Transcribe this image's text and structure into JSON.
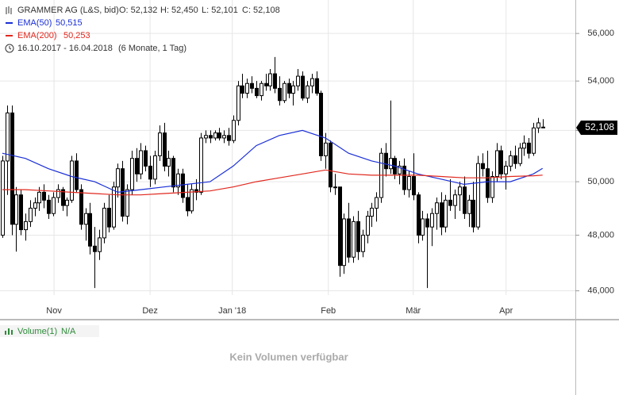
{
  "chart_data": {
    "type": "candlestick",
    "header": {
      "instrument": "GRAMMER AG (L&S, bid)",
      "open": "O: 52,132",
      "high": "H: 52,450",
      "low": "L: 52,101",
      "close": "C: 52,108",
      "range": "16.10.2017 - 16.04.2018",
      "period": "(6 Monate, 1 Tag)"
    },
    "log_scale": true,
    "grid": true,
    "xlim": [
      -0.5,
      124.1
    ],
    "ylim": [
      45080,
      57450
    ],
    "yticks": [
      {
        "value": 46000,
        "label": "46,000"
      },
      {
        "value": 48000,
        "label": "48,000"
      },
      {
        "value": 50000,
        "label": "50,000"
      },
      {
        "value": 52000,
        "label": "52,000"
      },
      {
        "value": 54000,
        "label": "54,000"
      },
      {
        "value": 56000,
        "label": "56,000"
      }
    ],
    "xticks": [
      {
        "value": 11.2,
        "label": "Nov"
      },
      {
        "value": 32,
        "label": "Dez"
      },
      {
        "value": 49.8,
        "label": "Jan '18"
      },
      {
        "value": 70.6,
        "label": "Feb"
      },
      {
        "value": 89,
        "label": "Mär"
      },
      {
        "value": 109.1,
        "label": "Apr"
      }
    ],
    "last_price": {
      "value": 52108,
      "label": "52,108"
    },
    "up_color": "#ffffff",
    "down_color": "#000000",
    "candles": [
      [
        48000,
        51000,
        47900,
        50800
      ],
      [
        50800,
        53000,
        49500,
        52700
      ],
      [
        52700,
        53000,
        48000,
        48400
      ],
      [
        48400,
        49800,
        47400,
        49500
      ],
      [
        49500,
        49700,
        48000,
        48200
      ],
      [
        48200,
        48800,
        47800,
        48500
      ],
      [
        48500,
        49300,
        48300,
        49000
      ],
      [
        49000,
        49400,
        48700,
        49200
      ],
      [
        49200,
        49800,
        48900,
        49600
      ],
      [
        49600,
        49900,
        49000,
        49300
      ],
      [
        49300,
        49500,
        48600,
        48800
      ],
      [
        48800,
        49600,
        48700,
        49400
      ],
      [
        49400,
        49900,
        49200,
        49700
      ],
      [
        49700,
        49800,
        48900,
        49100
      ],
      [
        49100,
        49400,
        48700,
        49300
      ],
      [
        49300,
        51000,
        49200,
        50800
      ],
      [
        50800,
        51100,
        49600,
        49700
      ],
      [
        49700,
        49900,
        48200,
        48400
      ],
      [
        48400,
        49000,
        47800,
        48800
      ],
      [
        48800,
        49200,
        47300,
        47600
      ],
      [
        47600,
        48300,
        46100,
        47400
      ],
      [
        47400,
        48200,
        47100,
        47900
      ],
      [
        47900,
        49200,
        47700,
        49000
      ],
      [
        49000,
        49500,
        48100,
        48300
      ],
      [
        48300,
        50000,
        48200,
        49800
      ],
      [
        49800,
        50700,
        49400,
        50500
      ],
      [
        50500,
        50800,
        48500,
        48700
      ],
      [
        48700,
        49900,
        48400,
        49700
      ],
      [
        49700,
        51200,
        49500,
        50900
      ],
      [
        50900,
        51300,
        50000,
        50300
      ],
      [
        50300,
        51500,
        50100,
        51200
      ],
      [
        51200,
        51400,
        50400,
        50600
      ],
      [
        50600,
        51000,
        49800,
        50100
      ],
      [
        50100,
        51200,
        49900,
        51000
      ],
      [
        51000,
        52200,
        50800,
        51900
      ],
      [
        51900,
        52300,
        50400,
        50600
      ],
      [
        50600,
        51200,
        50200,
        50900
      ],
      [
        50900,
        51000,
        49600,
        49800
      ],
      [
        49800,
        50500,
        49500,
        50300
      ],
      [
        50300,
        50500,
        49200,
        49400
      ],
      [
        49400,
        49900,
        48700,
        48900
      ],
      [
        48900,
        49900,
        48800,
        49700
      ],
      [
        49700,
        50100,
        49300,
        49600
      ],
      [
        49600,
        51900,
        49500,
        51700
      ],
      [
        51700,
        52000,
        51500,
        51800
      ],
      [
        51800,
        52000,
        51500,
        51700
      ],
      [
        51700,
        52000,
        51600,
        51900
      ],
      [
        51900,
        52100,
        51600,
        51700
      ],
      [
        51700,
        52000,
        51500,
        51800
      ],
      [
        51800,
        52100,
        51400,
        51600
      ],
      [
        51600,
        52600,
        51500,
        52400
      ],
      [
        52400,
        54000,
        52200,
        53800
      ],
      [
        53800,
        54300,
        53300,
        53500
      ],
      [
        53500,
        54100,
        53300,
        53900
      ],
      [
        53900,
        54200,
        53500,
        53700
      ],
      [
        53700,
        54000,
        53300,
        53400
      ],
      [
        53400,
        54000,
        53200,
        53900
      ],
      [
        53900,
        54300,
        53600,
        53800
      ],
      [
        53800,
        54500,
        53600,
        54300
      ],
      [
        54300,
        55000,
        53500,
        53700
      ],
      [
        53700,
        54200,
        53000,
        53200
      ],
      [
        53200,
        54000,
        53100,
        53900
      ],
      [
        53900,
        54100,
        53300,
        53500
      ],
      [
        53500,
        54000,
        53000,
        53800
      ],
      [
        53800,
        54500,
        53600,
        54200
      ],
      [
        54200,
        54400,
        53200,
        53300
      ],
      [
        53300,
        54000,
        53100,
        53800
      ],
      [
        53800,
        54300,
        53500,
        54100
      ],
      [
        54100,
        54400,
        53400,
        53500
      ],
      [
        53500,
        53600,
        50800,
        51000
      ],
      [
        51000,
        51900,
        50500,
        51500
      ],
      [
        51500,
        51600,
        49600,
        49800
      ],
      [
        49800,
        50300,
        49500,
        49800
      ],
      [
        49800,
        49800,
        46500,
        46900
      ],
      [
        46900,
        48800,
        46600,
        48600
      ],
      [
        48600,
        49200,
        47000,
        47200
      ],
      [
        47200,
        48700,
        47000,
        48500
      ],
      [
        48500,
        48900,
        47100,
        47400
      ],
      [
        47400,
        48200,
        47200,
        48000
      ],
      [
        48000,
        48900,
        47700,
        48700
      ],
      [
        48700,
        49200,
        48300,
        49000
      ],
      [
        49000,
        49600,
        48500,
        49400
      ],
      [
        49400,
        51300,
        49200,
        51100
      ],
      [
        51100,
        51500,
        50200,
        50500
      ],
      [
        50500,
        53200,
        50300,
        50900
      ],
      [
        50900,
        51000,
        50100,
        50300
      ],
      [
        50300,
        50800,
        49900,
        50600
      ],
      [
        50600,
        50900,
        49500,
        49700
      ],
      [
        49700,
        50400,
        49400,
        50200
      ],
      [
        50200,
        51100,
        49300,
        49500
      ],
      [
        49500,
        49600,
        47700,
        48000
      ],
      [
        48000,
        48900,
        47800,
        48600
      ],
      [
        48600,
        48800,
        46100,
        48300
      ],
      [
        48300,
        49000,
        47600,
        48800
      ],
      [
        48800,
        49400,
        48200,
        49200
      ],
      [
        49200,
        49600,
        48000,
        48300
      ],
      [
        48300,
        49500,
        48100,
        49300
      ],
      [
        49300,
        50100,
        48900,
        49100
      ],
      [
        49100,
        49700,
        48600,
        49500
      ],
      [
        49500,
        50000,
        48900,
        49800
      ],
      [
        49800,
        50200,
        48600,
        48800
      ],
      [
        48800,
        49500,
        48300,
        49300
      ],
      [
        49300,
        50000,
        48100,
        48300
      ],
      [
        48300,
        51000,
        48200,
        50700
      ],
      [
        50700,
        51100,
        50200,
        50500
      ],
      [
        50500,
        51200,
        49200,
        49400
      ],
      [
        49400,
        50400,
        49200,
        50200
      ],
      [
        50200,
        51500,
        50000,
        51200
      ],
      [
        51200,
        51400,
        50100,
        50300
      ],
      [
        50300,
        50800,
        49700,
        50600
      ],
      [
        50600,
        51200,
        50400,
        51000
      ],
      [
        51000,
        51400,
        50500,
        50700
      ],
      [
        50700,
        51500,
        50600,
        51300
      ],
      [
        51300,
        51800,
        51000,
        51500
      ],
      [
        51500,
        51700,
        50900,
        51100
      ],
      [
        51100,
        52300,
        51000,
        52100
      ],
      [
        52100,
        52500,
        51900,
        52300
      ],
      [
        52132,
        52450,
        52101,
        52108
      ]
    ],
    "series": [
      {
        "name": "EMA(50)",
        "value_label": "50,515",
        "color": "#1a2fd6",
        "x": [
          0,
          5,
          10,
          15,
          20,
          25,
          30,
          35,
          40,
          45,
          50,
          55,
          60,
          65,
          70,
          75,
          80,
          85,
          90,
          95,
          100,
          105,
          110,
          115,
          117
        ],
        "values": [
          51100,
          50900,
          50500,
          50200,
          50000,
          49600,
          49700,
          49800,
          49900,
          50000,
          50600,
          51400,
          51800,
          52000,
          51700,
          51100,
          50800,
          50600,
          50300,
          50100,
          49900,
          50000,
          50000,
          50300,
          50515
        ]
      },
      {
        "name": "EMA(200)",
        "value_label": "50,253",
        "color": "#e0281e",
        "x": [
          0,
          5,
          10,
          15,
          20,
          25,
          30,
          35,
          40,
          45,
          50,
          55,
          60,
          65,
          70,
          75,
          80,
          85,
          90,
          95,
          100,
          105,
          110,
          115,
          117
        ],
        "values": [
          49700,
          49700,
          49650,
          49600,
          49550,
          49500,
          49500,
          49550,
          49600,
          49650,
          49800,
          50000,
          50150,
          50300,
          50450,
          50300,
          50250,
          50250,
          50250,
          50200,
          50150,
          50150,
          50200,
          50230,
          50253
        ]
      }
    ],
    "volume": {
      "name": "Volume(1)",
      "value": "N/A",
      "message": "Kein Volumen verfügbar"
    }
  }
}
